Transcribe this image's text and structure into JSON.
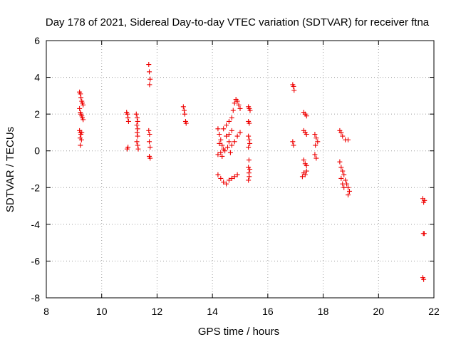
{
  "chart_data": {
    "type": "scatter",
    "title": "Day 178 of 2021, Sidereal Day-to-day VTEC variation (SDTVAR) for receiver ftna",
    "xlabel": "GPS time / hours",
    "ylabel": "SDTVAR / TECUs",
    "xlim": [
      8,
      22
    ],
    "ylim": [
      -8,
      6
    ],
    "xticks": [
      "8",
      "10",
      "12",
      "14",
      "16",
      "18",
      "20",
      "22"
    ],
    "yticks": [
      "-8",
      "-6",
      "-4",
      "-2",
      "0",
      "2",
      "4",
      "6"
    ],
    "grid": true,
    "marker": "+",
    "series": [
      {
        "name": "SDTVAR",
        "color": "#ee0000",
        "points": [
          [
            9.2,
            3.2
          ],
          [
            9.23,
            3.1
          ],
          [
            9.25,
            2.9
          ],
          [
            9.28,
            2.7
          ],
          [
            9.3,
            2.6
          ],
          [
            9.33,
            2.5
          ],
          [
            9.2,
            2.3
          ],
          [
            9.23,
            2.1
          ],
          [
            9.25,
            2.0
          ],
          [
            9.28,
            1.9
          ],
          [
            9.3,
            1.8
          ],
          [
            9.33,
            1.7
          ],
          [
            9.2,
            1.1
          ],
          [
            9.23,
            1.0
          ],
          [
            9.25,
            0.9
          ],
          [
            9.28,
            1.0
          ],
          [
            9.22,
            0.7
          ],
          [
            9.27,
            0.6
          ],
          [
            9.23,
            0.3
          ],
          [
            10.9,
            2.1
          ],
          [
            10.93,
            2.0
          ],
          [
            10.95,
            1.8
          ],
          [
            10.97,
            1.6
          ],
          [
            10.92,
            0.1
          ],
          [
            10.95,
            0.2
          ],
          [
            11.25,
            2.0
          ],
          [
            11.28,
            1.8
          ],
          [
            11.3,
            1.6
          ],
          [
            11.27,
            1.4
          ],
          [
            11.3,
            1.2
          ],
          [
            11.28,
            1.0
          ],
          [
            11.3,
            0.8
          ],
          [
            11.27,
            0.5
          ],
          [
            11.3,
            0.3
          ],
          [
            11.32,
            0.1
          ],
          [
            11.7,
            4.7
          ],
          [
            11.72,
            4.3
          ],
          [
            11.75,
            3.9
          ],
          [
            11.73,
            3.6
          ],
          [
            11.7,
            1.1
          ],
          [
            11.73,
            0.9
          ],
          [
            11.72,
            0.5
          ],
          [
            11.75,
            0.2
          ],
          [
            11.72,
            -0.3
          ],
          [
            11.75,
            -0.4
          ],
          [
            12.95,
            2.4
          ],
          [
            12.98,
            2.2
          ],
          [
            13.0,
            2.0
          ],
          [
            13.03,
            1.6
          ],
          [
            13.05,
            1.5
          ],
          [
            14.2,
            1.2
          ],
          [
            14.25,
            0.9
          ],
          [
            14.3,
            0.6
          ],
          [
            14.35,
            0.3
          ],
          [
            14.4,
            0.1
          ],
          [
            14.45,
            0.0
          ],
          [
            14.3,
            -0.1
          ],
          [
            14.2,
            -0.2
          ],
          [
            14.35,
            -0.3
          ],
          [
            14.25,
            0.4
          ],
          [
            14.4,
            1.2
          ],
          [
            14.5,
            1.4
          ],
          [
            14.6,
            1.6
          ],
          [
            14.7,
            1.8
          ],
          [
            14.75,
            2.2
          ],
          [
            14.8,
            2.6
          ],
          [
            14.85,
            2.8
          ],
          [
            14.9,
            2.7
          ],
          [
            14.95,
            2.5
          ],
          [
            15.0,
            2.3
          ],
          [
            14.5,
            0.8
          ],
          [
            14.6,
            0.5
          ],
          [
            14.7,
            0.3
          ],
          [
            14.8,
            0.5
          ],
          [
            14.9,
            0.8
          ],
          [
            15.0,
            1.0
          ],
          [
            14.6,
            0.9
          ],
          [
            14.7,
            1.1
          ],
          [
            14.55,
            0.2
          ],
          [
            14.65,
            -0.1
          ],
          [
            14.2,
            -1.3
          ],
          [
            14.3,
            -1.5
          ],
          [
            14.4,
            -1.7
          ],
          [
            14.5,
            -1.8
          ],
          [
            14.6,
            -1.6
          ],
          [
            14.7,
            -1.5
          ],
          [
            14.8,
            -1.4
          ],
          [
            14.9,
            -1.3
          ],
          [
            15.3,
            2.4
          ],
          [
            15.33,
            2.3
          ],
          [
            15.36,
            2.2
          ],
          [
            15.3,
            1.6
          ],
          [
            15.33,
            1.5
          ],
          [
            15.3,
            0.8
          ],
          [
            15.33,
            0.6
          ],
          [
            15.35,
            0.4
          ],
          [
            15.3,
            0.2
          ],
          [
            15.32,
            -0.5
          ],
          [
            15.3,
            -0.9
          ],
          [
            15.32,
            -1.2
          ],
          [
            15.3,
            -1.6
          ],
          [
            15.33,
            -1.4
          ],
          [
            15.35,
            -1.0
          ],
          [
            16.9,
            3.6
          ],
          [
            16.93,
            3.5
          ],
          [
            16.95,
            3.3
          ],
          [
            16.9,
            0.5
          ],
          [
            16.93,
            0.3
          ],
          [
            17.3,
            2.1
          ],
          [
            17.35,
            2.0
          ],
          [
            17.4,
            1.9
          ],
          [
            17.3,
            1.1
          ],
          [
            17.35,
            1.0
          ],
          [
            17.4,
            0.9
          ],
          [
            17.3,
            -0.5
          ],
          [
            17.35,
            -0.7
          ],
          [
            17.4,
            -0.8
          ],
          [
            17.3,
            -1.2
          ],
          [
            17.35,
            -1.3
          ],
          [
            17.4,
            -1.1
          ],
          [
            17.25,
            -1.4
          ],
          [
            17.7,
            0.9
          ],
          [
            17.75,
            0.7
          ],
          [
            17.8,
            0.5
          ],
          [
            17.72,
            0.3
          ],
          [
            17.7,
            -0.2
          ],
          [
            17.75,
            -0.4
          ],
          [
            18.6,
            1.1
          ],
          [
            18.65,
            1.0
          ],
          [
            18.7,
            0.8
          ],
          [
            18.8,
            0.6
          ],
          [
            18.9,
            0.6
          ],
          [
            18.6,
            -0.6
          ],
          [
            18.65,
            -0.9
          ],
          [
            18.7,
            -1.1
          ],
          [
            18.75,
            -1.3
          ],
          [
            18.8,
            -1.6
          ],
          [
            18.85,
            -1.8
          ],
          [
            18.9,
            -2.0
          ],
          [
            18.95,
            -2.2
          ],
          [
            18.9,
            -2.4
          ],
          [
            18.65,
            -1.5
          ],
          [
            18.7,
            -1.8
          ],
          [
            18.75,
            -2.0
          ],
          [
            21.6,
            -2.6
          ],
          [
            21.63,
            -2.8
          ],
          [
            21.66,
            -2.7
          ],
          [
            21.65,
            -4.5
          ],
          [
            21.62,
            -4.5
          ],
          [
            21.6,
            -6.9
          ],
          [
            21.63,
            -7.0
          ]
        ]
      }
    ]
  }
}
